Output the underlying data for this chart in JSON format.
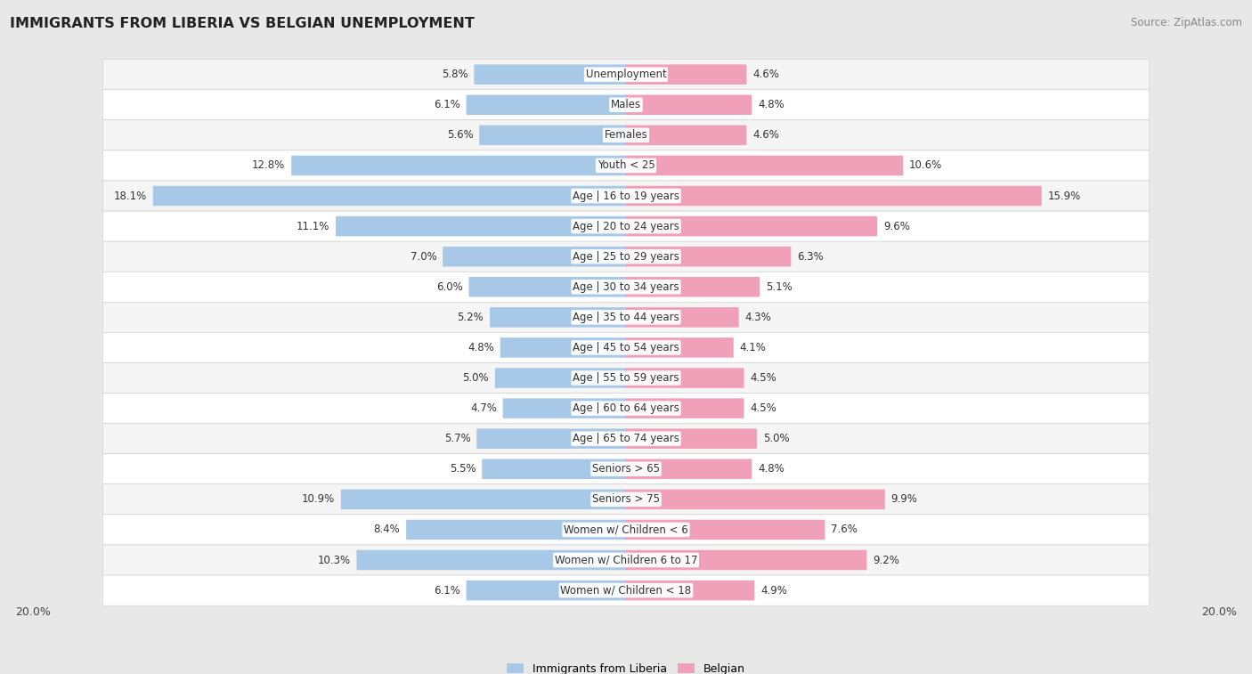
{
  "title": "IMMIGRANTS FROM LIBERIA VS BELGIAN UNEMPLOYMENT",
  "source": "Source: ZipAtlas.com",
  "categories": [
    "Unemployment",
    "Males",
    "Females",
    "Youth < 25",
    "Age | 16 to 19 years",
    "Age | 20 to 24 years",
    "Age | 25 to 29 years",
    "Age | 30 to 34 years",
    "Age | 35 to 44 years",
    "Age | 45 to 54 years",
    "Age | 55 to 59 years",
    "Age | 60 to 64 years",
    "Age | 65 to 74 years",
    "Seniors > 65",
    "Seniors > 75",
    "Women w/ Children < 6",
    "Women w/ Children 6 to 17",
    "Women w/ Children < 18"
  ],
  "left_values": [
    5.8,
    6.1,
    5.6,
    12.8,
    18.1,
    11.1,
    7.0,
    6.0,
    5.2,
    4.8,
    5.0,
    4.7,
    5.7,
    5.5,
    10.9,
    8.4,
    10.3,
    6.1
  ],
  "right_values": [
    4.6,
    4.8,
    4.6,
    10.6,
    15.9,
    9.6,
    6.3,
    5.1,
    4.3,
    4.1,
    4.5,
    4.5,
    5.0,
    4.8,
    9.9,
    7.6,
    9.2,
    4.9
  ],
  "left_color": "#a8c8e8",
  "right_color": "#f0a0b8",
  "max_val": 20.0,
  "legend_left": "Immigrants from Liberia",
  "legend_right": "Belgian",
  "bg_color": "#e8e8e8",
  "row_bg_even": "#f5f5f5",
  "row_bg_odd": "#ffffff",
  "label_color": "#555555",
  "title_color": "#222222",
  "value_label_fontsize": 8.5,
  "cat_label_fontsize": 8.5,
  "title_fontsize": 11.5,
  "source_fontsize": 8.5
}
